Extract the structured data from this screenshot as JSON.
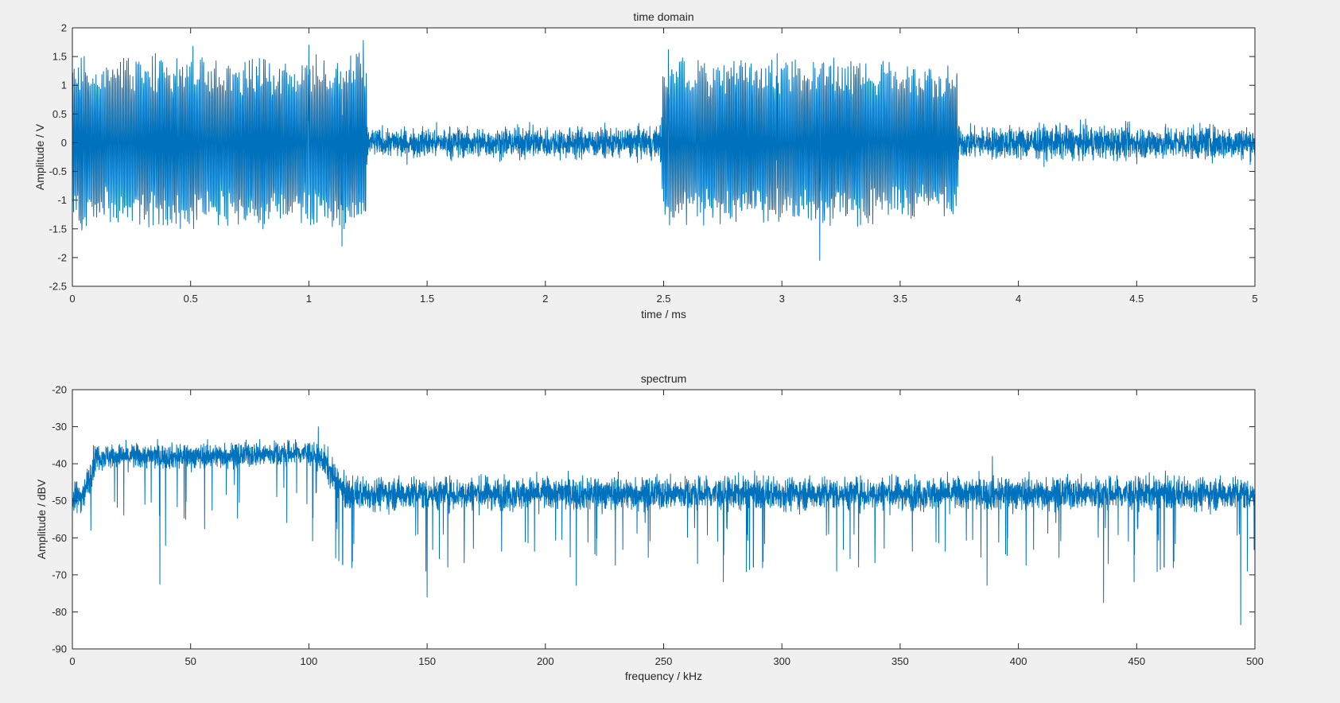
{
  "figure": {
    "background": "#f0f0f0",
    "axes_background": "#ffffff",
    "line_color": "#0072bd"
  },
  "chart_data": [
    {
      "id": "time-domain",
      "type": "line",
      "title": "time domain",
      "xlabel": "time / ms",
      "ylabel": "Amplitude / V",
      "xlim": [
        0,
        5
      ],
      "ylim": [
        -2.5,
        2
      ],
      "xticks": [
        0,
        0.5,
        1,
        1.5,
        2,
        2.5,
        3,
        3.5,
        4,
        4.5,
        5
      ],
      "xtick_labels": [
        "0",
        "0.5",
        "1",
        "1.5",
        "2",
        "2.5",
        "3",
        "3.5",
        "4",
        "4.5",
        "5"
      ],
      "yticks": [
        2,
        1.5,
        1,
        0.5,
        0,
        -0.5,
        -1,
        -1.5,
        -2,
        -2.5
      ],
      "ytick_labels": [
        "2",
        "1.5",
        "1",
        "0.5",
        "0",
        "-0.5",
        "-1",
        "-1.5",
        "-2",
        "-2.5"
      ],
      "grid": false,
      "series": [
        {
          "x": [
            0,
            0.05,
            0.1,
            0.25,
            0.5,
            0.75,
            1.0,
            1.24,
            1.25,
            1.5,
            2.0,
            2.48,
            2.5,
            2.75,
            3.0,
            3.25,
            3.5,
            3.74,
            3.75,
            4.0,
            4.5,
            5.0
          ],
          "envelope": [
            1.4,
            1.5,
            1.4,
            1.5,
            1.5,
            1.5,
            1.5,
            1.7,
            0.4,
            0.45,
            0.45,
            0.45,
            1.4,
            1.5,
            1.5,
            1.5,
            1.4,
            1.35,
            0.45,
            0.5,
            0.5,
            0.5
          ],
          "peaks": [
            {
              "x": 0.51,
              "y": 1.68
            },
            {
              "x": 1.0,
              "y": 1.7
            },
            {
              "x": 1.23,
              "y": 1.78
            },
            {
              "x": 1.14,
              "y": -1.8
            },
            {
              "x": 2.52,
              "y": 1.62
            },
            {
              "x": 3.16,
              "y": -2.05
            },
            {
              "x": 2.98,
              "y": 1.55
            },
            {
              "x": 0.04,
              "y": -1.52
            }
          ]
        }
      ]
    },
    {
      "id": "spectrum",
      "type": "line",
      "title": "spectrum",
      "xlabel": "frequency / kHz",
      "ylabel": "Amplitude / dBV",
      "xlim": [
        0,
        500
      ],
      "ylim": [
        -90,
        -20
      ],
      "xticks": [
        0,
        50,
        100,
        150,
        200,
        250,
        300,
        350,
        400,
        450,
        500
      ],
      "xtick_labels": [
        "0",
        "50",
        "100",
        "150",
        "200",
        "250",
        "300",
        "350",
        "400",
        "450",
        "500"
      ],
      "yticks": [
        -20,
        -30,
        -40,
        -50,
        -60,
        -70,
        -80,
        -90
      ],
      "ytick_labels": [
        "-20",
        "-30",
        "-40",
        "-50",
        "-60",
        "-70",
        "-80",
        "-90"
      ],
      "grid": false,
      "series": [
        {
          "x": [
            0,
            5,
            10,
            50,
            100,
            106,
            115,
            200,
            300,
            400,
            500
          ],
          "level": [
            -50,
            -48,
            -38,
            -38,
            -37,
            -39,
            -48,
            -48,
            -48,
            -48,
            -48
          ],
          "peaks": [
            {
              "x": 37,
              "y": -72.5
            },
            {
              "x": 150,
              "y": -76
            },
            {
              "x": 104,
              "y": -30
            },
            {
              "x": 436,
              "y": -77.5
            },
            {
              "x": 494,
              "y": -83.5
            },
            {
              "x": 389,
              "y": -38
            }
          ]
        }
      ]
    }
  ]
}
